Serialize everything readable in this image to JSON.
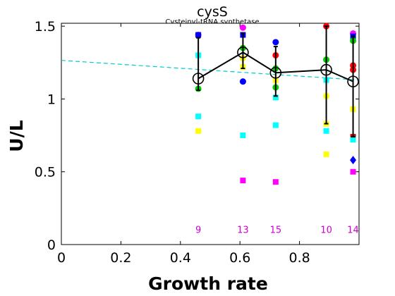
{
  "chart_data": {
    "type": "scatter",
    "title": "cysS",
    "subtitle": "Cysteinyl-tRNA synthetase",
    "xlabel": "Growth rate",
    "ylabel": "U/L",
    "xlim": [
      0,
      1
    ],
    "ylim": [
      0,
      1.52
    ],
    "xticks": [
      0,
      0.2,
      0.4,
      0.6,
      0.8
    ],
    "xtick_labels": [
      "0",
      "0.2",
      "0.4",
      "0.6",
      "0.8"
    ],
    "yticks": [
      0,
      0.5,
      1,
      1.5
    ],
    "ytick_labels": [
      "0",
      "0.5",
      "1",
      "1.5"
    ],
    "grid": false,
    "trend_line": {
      "x": [
        0,
        1.0
      ],
      "y": [
        1.265,
        1.13
      ],
      "color": "#00cccc",
      "style": "dashed"
    },
    "mean_series": {
      "x": [
        0.46,
        0.61,
        0.72,
        0.89,
        0.98
      ],
      "y": [
        1.14,
        1.32,
        1.18,
        1.2,
        1.12
      ],
      "err_low": [
        1.06,
        1.21,
        1.02,
        0.83,
        0.74
      ],
      "err_high": [
        1.42,
        1.45,
        1.36,
        1.5,
        1.43
      ]
    },
    "points": [
      {
        "x": 0.46,
        "y": 1.44,
        "shape": "circle",
        "color": "#ff00ff"
      },
      {
        "x": 0.46,
        "y": 1.44,
        "shape": "square",
        "color": "#0000ff"
      },
      {
        "x": 0.46,
        "y": 1.3,
        "shape": "square",
        "color": "#00ffff"
      },
      {
        "x": 0.46,
        "y": 1.07,
        "shape": "circle",
        "color": "#00cc00"
      },
      {
        "x": 0.46,
        "y": 0.88,
        "shape": "square",
        "color": "#00ffff"
      },
      {
        "x": 0.46,
        "y": 0.78,
        "shape": "square",
        "color": "#ffff00"
      },
      {
        "x": 0.61,
        "y": 1.49,
        "shape": "circle",
        "color": "#ff00ff"
      },
      {
        "x": 0.61,
        "y": 1.44,
        "shape": "square",
        "color": "#0000ff"
      },
      {
        "x": 0.61,
        "y": 1.35,
        "shape": "circle",
        "color": "#00cc00"
      },
      {
        "x": 0.61,
        "y": 1.28,
        "shape": "circle",
        "color": "#ffff00"
      },
      {
        "x": 0.61,
        "y": 1.22,
        "shape": "square",
        "color": "#ffff00"
      },
      {
        "x": 0.61,
        "y": 1.12,
        "shape": "circle",
        "color": "#0000ff"
      },
      {
        "x": 0.61,
        "y": 0.75,
        "shape": "square",
        "color": "#00ffff"
      },
      {
        "x": 0.61,
        "y": 0.44,
        "shape": "square",
        "color": "#ff00ff"
      },
      {
        "x": 0.72,
        "y": 1.39,
        "shape": "circle",
        "color": "#0000ff"
      },
      {
        "x": 0.72,
        "y": 1.3,
        "shape": "circle",
        "color": "#ff0000"
      },
      {
        "x": 0.72,
        "y": 1.21,
        "shape": "circle",
        "color": "#00cc00"
      },
      {
        "x": 0.72,
        "y": 1.13,
        "shape": "square",
        "color": "#ffff00"
      },
      {
        "x": 0.72,
        "y": 1.08,
        "shape": "circle",
        "color": "#00cc00"
      },
      {
        "x": 0.72,
        "y": 1.01,
        "shape": "square",
        "color": "#00ffff"
      },
      {
        "x": 0.72,
        "y": 0.82,
        "shape": "square",
        "color": "#00ffff"
      },
      {
        "x": 0.72,
        "y": 0.43,
        "shape": "square",
        "color": "#ff00ff"
      },
      {
        "x": 0.89,
        "y": 1.5,
        "shape": "circle",
        "color": "#ff0000"
      },
      {
        "x": 0.89,
        "y": 1.27,
        "shape": "circle",
        "color": "#00cc00"
      },
      {
        "x": 0.89,
        "y": 1.13,
        "shape": "square",
        "color": "#00ffff"
      },
      {
        "x": 0.89,
        "y": 1.02,
        "shape": "circle",
        "color": "#ffff00"
      },
      {
        "x": 0.89,
        "y": 0.83,
        "shape": "square",
        "color": "#ffff00"
      },
      {
        "x": 0.89,
        "y": 0.78,
        "shape": "square",
        "color": "#00ffff"
      },
      {
        "x": 0.89,
        "y": 0.62,
        "shape": "square",
        "color": "#ffff00"
      },
      {
        "x": 0.98,
        "y": 1.45,
        "shape": "circle",
        "color": "#ff00ff"
      },
      {
        "x": 0.98,
        "y": 1.43,
        "shape": "square",
        "color": "#0000ff"
      },
      {
        "x": 0.98,
        "y": 1.4,
        "shape": "circle",
        "color": "#00cc00"
      },
      {
        "x": 0.98,
        "y": 1.23,
        "shape": "circle",
        "color": "#ff0000"
      },
      {
        "x": 0.98,
        "y": 1.2,
        "shape": "circle",
        "color": "#ff0000"
      },
      {
        "x": 0.98,
        "y": 0.93,
        "shape": "square",
        "color": "#ffff00"
      },
      {
        "x": 0.98,
        "y": 0.74,
        "shape": "square",
        "color": "#cc0000"
      },
      {
        "x": 0.98,
        "y": 0.72,
        "shape": "square",
        "color": "#00ffff"
      },
      {
        "x": 0.98,
        "y": 0.58,
        "shape": "diamond",
        "color": "#0000ff"
      },
      {
        "x": 0.98,
        "y": 0.5,
        "shape": "square",
        "color": "#ff00ff"
      }
    ],
    "count_labels": [
      {
        "x": 0.46,
        "text": "9"
      },
      {
        "x": 0.61,
        "text": "13"
      },
      {
        "x": 0.72,
        "text": "15"
      },
      {
        "x": 0.89,
        "text": "10"
      },
      {
        "x": 0.98,
        "text": "14"
      }
    ],
    "count_label_y": 0.1,
    "count_label_color": "#cc00cc"
  }
}
